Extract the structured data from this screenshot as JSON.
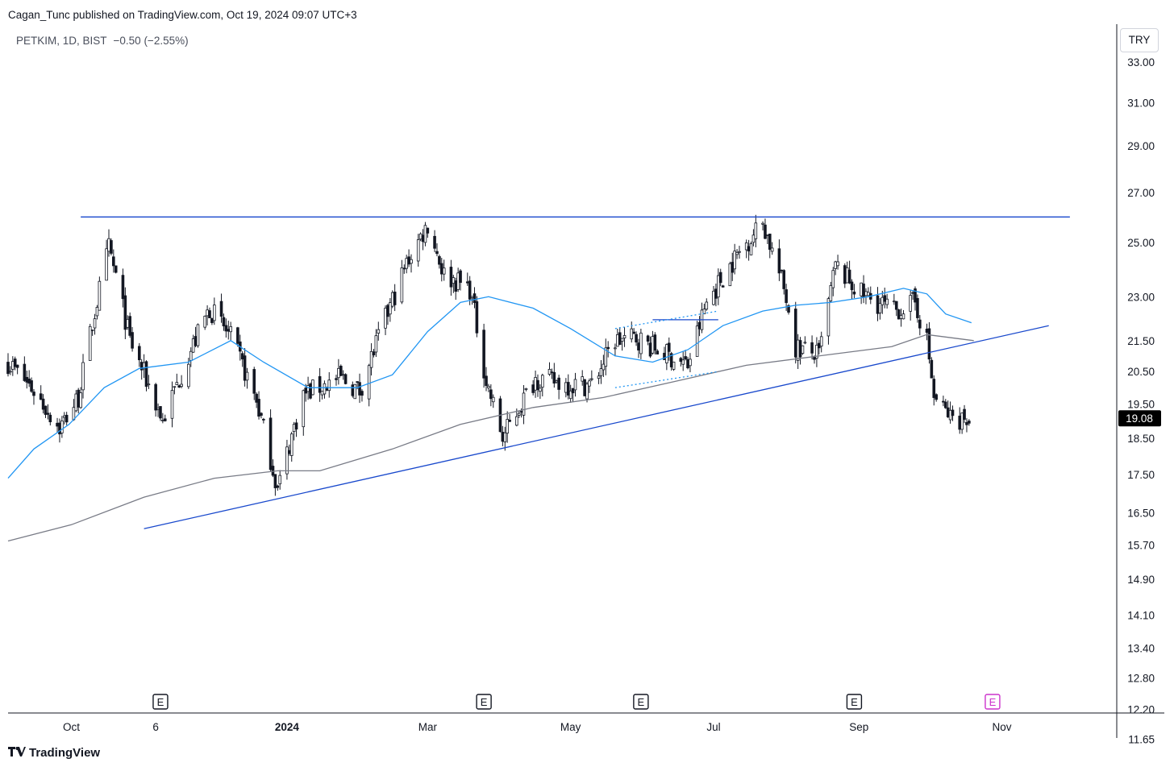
{
  "header": {
    "attribution": "Cagan_Tunc published on TradingView.com, Oct 19, 2024 09:07 UTC+3"
  },
  "legend": {
    "symbol": "PETKIM, 1D, BIST",
    "change": "−0.50 (−2.55%)"
  },
  "currency_button": "TRY",
  "footer": {
    "brand": "TradingView",
    "logo_icon": "tradingview-logo-icon"
  },
  "colors": {
    "candle": "#131722",
    "ma_fast": "#2196f3",
    "ma_slow": "#787b86",
    "trendline": "#1848cc",
    "last_price_bg": "#000000",
    "earnings_future": "#cc33cc"
  },
  "chart_data": {
    "type": "candlestick",
    "symbol": "PETKIM",
    "interval": "1D",
    "exchange": "BIST",
    "currency": "TRY",
    "scale": "log",
    "ylim": [
      11.65,
      35.0
    ],
    "xlim": [
      "2023-09-04",
      "2024-12-20"
    ],
    "last_price": 19.08,
    "last_price_label": "19.08",
    "y_ticks": [
      "33.00",
      "31.00",
      "29.00",
      "27.00",
      "25.00",
      "23.00",
      "21.50",
      "20.50",
      "19.50",
      "18.50",
      "17.50",
      "16.50",
      "15.70",
      "14.90",
      "14.10",
      "13.40",
      "12.80",
      "12.20",
      "11.65"
    ],
    "x_ticks": [
      {
        "label": "Oct",
        "date": "2023-10-01"
      },
      {
        "label": "6",
        "date": "2023-11-06"
      },
      {
        "label": "2024",
        "date": "2024-01-01"
      },
      {
        "label": "Mar",
        "date": "2024-03-01"
      },
      {
        "label": "May",
        "date": "2024-05-01"
      },
      {
        "label": "Jul",
        "date": "2024-07-01"
      },
      {
        "label": "Sep",
        "date": "2024-09-01"
      },
      {
        "label": "Nov",
        "date": "2024-11-01"
      }
    ],
    "earnings_markers": [
      {
        "date": "2023-11-08",
        "label": "E",
        "future": false
      },
      {
        "date": "2024-03-25",
        "label": "E",
        "future": false
      },
      {
        "date": "2024-05-31",
        "label": "E",
        "future": false
      },
      {
        "date": "2024-08-30",
        "label": "E",
        "future": false
      },
      {
        "date": "2024-10-28",
        "label": "E",
        "future": true
      }
    ],
    "price_path": [
      [
        "2023-09-04",
        20.8
      ],
      [
        "2023-09-14",
        20.0
      ],
      [
        "2023-09-26",
        18.8
      ],
      [
        "2023-10-04",
        19.7
      ],
      [
        "2023-10-17",
        24.8
      ],
      [
        "2023-10-26",
        21.5
      ],
      [
        "2023-11-09",
        19.0
      ],
      [
        "2023-11-20",
        21.0
      ],
      [
        "2023-11-29",
        22.6
      ],
      [
        "2023-12-08",
        21.6
      ],
      [
        "2023-12-19",
        19.6
      ],
      [
        "2023-12-28",
        17.1
      ],
      [
        "2024-01-08",
        19.8
      ],
      [
        "2024-01-24",
        20.3
      ],
      [
        "2024-02-01",
        19.9
      ],
      [
        "2024-02-10",
        21.8
      ],
      [
        "2024-02-22",
        24.4
      ],
      [
        "2024-03-01",
        25.7
      ],
      [
        "2024-03-08",
        23.8
      ],
      [
        "2024-03-19",
        23.3
      ],
      [
        "2024-03-26",
        20.2
      ],
      [
        "2024-04-02",
        18.5
      ],
      [
        "2024-04-16",
        20.3
      ],
      [
        "2024-05-01",
        20.1
      ],
      [
        "2024-05-10",
        20.1
      ],
      [
        "2024-05-20",
        21.5
      ],
      [
        "2024-05-29",
        21.6
      ],
      [
        "2024-06-07",
        21.2
      ],
      [
        "2024-06-20",
        20.7
      ],
      [
        "2024-06-28",
        22.8
      ],
      [
        "2024-07-10",
        24.4
      ],
      [
        "2024-07-22",
        25.8
      ],
      [
        "2024-08-01",
        23.0
      ],
      [
        "2024-08-05",
        21.3
      ],
      [
        "2024-08-15",
        21.0
      ],
      [
        "2024-08-22",
        24.1
      ],
      [
        "2024-09-02",
        23.1
      ],
      [
        "2024-09-16",
        22.5
      ],
      [
        "2024-09-25",
        22.8
      ],
      [
        "2024-09-30",
        21.5
      ],
      [
        "2024-10-03",
        19.7
      ],
      [
        "2024-10-10",
        19.1
      ],
      [
        "2024-10-18",
        19.08
      ]
    ],
    "series": [
      {
        "type": "moving_average",
        "points": [
          [
            "2023-09-04",
            17.4
          ],
          [
            "2023-09-15",
            18.2
          ],
          [
            "2023-09-30",
            18.9
          ],
          [
            "2023-10-15",
            20.0
          ],
          [
            "2023-10-30",
            20.6
          ],
          [
            "2023-11-20",
            20.8
          ],
          [
            "2023-12-08",
            21.5
          ],
          [
            "2023-12-22",
            20.8
          ],
          [
            "2024-01-10",
            20.0
          ],
          [
            "2024-01-31",
            20.0
          ],
          [
            "2024-02-15",
            20.4
          ],
          [
            "2024-03-01",
            21.8
          ],
          [
            "2024-03-15",
            22.8
          ],
          [
            "2024-03-27",
            23.0
          ],
          [
            "2024-04-15",
            22.6
          ],
          [
            "2024-05-01",
            21.9
          ],
          [
            "2024-05-20",
            21.0
          ],
          [
            "2024-06-05",
            20.8
          ],
          [
            "2024-06-20",
            21.2
          ],
          [
            "2024-07-05",
            22.0
          ],
          [
            "2024-07-22",
            22.5
          ],
          [
            "2024-08-05",
            22.7
          ],
          [
            "2024-08-20",
            22.8
          ],
          [
            "2024-09-05",
            23.0
          ],
          [
            "2024-09-20",
            23.3
          ],
          [
            "2024-09-30",
            23.1
          ],
          [
            "2024-10-08",
            22.4
          ],
          [
            "2024-10-19",
            22.1
          ]
        ]
      },
      {
        "type": "moving_average",
        "points": [
          [
            "2023-09-04",
            15.8
          ],
          [
            "2023-10-01",
            16.2
          ],
          [
            "2023-11-01",
            16.9
          ],
          [
            "2023-12-01",
            17.4
          ],
          [
            "2023-12-28",
            17.6
          ],
          [
            "2024-01-15",
            17.6
          ],
          [
            "2024-02-15",
            18.2
          ],
          [
            "2024-03-15",
            18.9
          ],
          [
            "2024-04-15",
            19.4
          ],
          [
            "2024-05-15",
            19.7
          ],
          [
            "2024-06-15",
            20.2
          ],
          [
            "2024-07-15",
            20.7
          ],
          [
            "2024-08-15",
            21.0
          ],
          [
            "2024-09-15",
            21.3
          ],
          [
            "2024-09-30",
            21.7
          ],
          [
            "2024-10-20",
            21.5
          ]
        ]
      }
    ],
    "drawings": [
      {
        "type": "horizontal_resistance",
        "from": "2023-10-05",
        "to": "2024-11-30",
        "price": 26.0
      },
      {
        "type": "rising_trendline",
        "from": [
          "2023-11-01",
          16.1
        ],
        "to": [
          "2024-11-21",
          22.0
        ]
      },
      {
        "type": "horizontal_segment",
        "from": "2024-06-05",
        "to": "2024-07-03",
        "price": 22.2
      },
      {
        "type": "dotted_channel_top",
        "from": [
          "2024-05-20",
          21.9
        ],
        "to": [
          "2024-07-03",
          22.5
        ]
      },
      {
        "type": "dotted_channel_bottom",
        "from": [
          "2024-05-20",
          20.0
        ],
        "to": [
          "2024-07-03",
          20.5
        ]
      }
    ]
  }
}
